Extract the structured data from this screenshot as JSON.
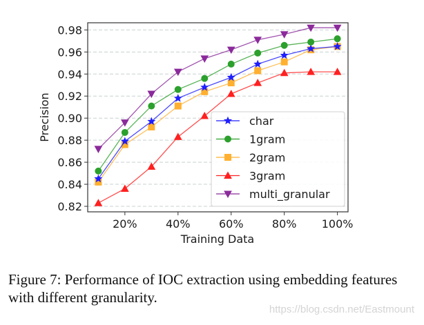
{
  "chart_data": {
    "type": "line",
    "title": "",
    "xlabel": "Training Data",
    "ylabel": "Precision",
    "x": [
      10,
      20,
      30,
      40,
      50,
      60,
      70,
      80,
      90,
      100
    ],
    "x_unit": "%",
    "xticks": [
      20,
      40,
      60,
      80,
      100
    ],
    "xtick_labels": [
      "20%",
      "40%",
      "60%",
      "80%",
      "100%"
    ],
    "xlim": [
      6,
      104
    ],
    "yticks": [
      0.82,
      0.84,
      0.86,
      0.88,
      0.9,
      0.92,
      0.94,
      0.96,
      0.98
    ],
    "ytick_labels": [
      "0.82",
      "0.84",
      "0.86",
      "0.88",
      "0.90",
      "0.92",
      "0.94",
      "0.96",
      "0.98"
    ],
    "ylim": [
      0.815,
      0.9865
    ],
    "grid": "horizontal dashed",
    "legend_position": "lower-right",
    "series": [
      {
        "name": "char",
        "color": "#1f1fff",
        "marker": "star",
        "values": [
          0.845,
          0.879,
          0.897,
          0.918,
          0.928,
          0.937,
          0.949,
          0.957,
          0.963,
          0.965
        ]
      },
      {
        "name": "1gram",
        "color": "#2ca02c",
        "marker": "circle",
        "values": [
          0.852,
          0.887,
          0.911,
          0.926,
          0.936,
          0.949,
          0.959,
          0.966,
          0.969,
          0.972
        ]
      },
      {
        "name": "2gram",
        "color": "#ffb030",
        "marker": "square",
        "values": [
          0.842,
          0.876,
          0.892,
          0.911,
          0.924,
          0.932,
          0.943,
          0.951,
          0.962,
          0.965
        ]
      },
      {
        "name": "3gram",
        "color": "#ff2020",
        "marker": "triangle-up",
        "values": [
          0.823,
          0.836,
          0.856,
          0.883,
          0.902,
          0.922,
          0.932,
          0.941,
          0.942,
          0.942
        ]
      },
      {
        "name": "multi_granular",
        "color": "#8b2a9b",
        "marker": "triangle-down",
        "values": [
          0.872,
          0.896,
          0.922,
          0.942,
          0.954,
          0.962,
          0.971,
          0.976,
          0.982,
          0.982
        ]
      }
    ]
  },
  "caption": "Figure 7: Performance of IOC extraction using embedding features with different granularity.",
  "watermark": "https://blog.csdn.net/Eastmount"
}
